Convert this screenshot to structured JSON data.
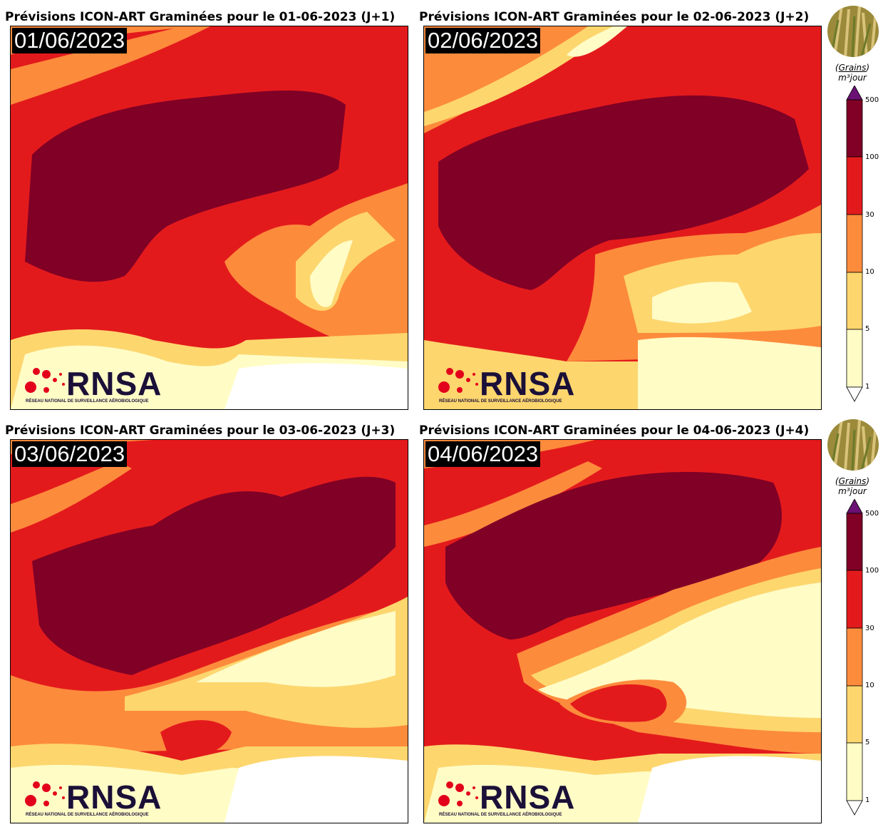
{
  "panels": [
    {
      "title": "Prévisions ICON-ART Graminées pour le 01-06-2023 (J+1)",
      "date": "01/06/2023"
    },
    {
      "title": "Prévisions ICON-ART Graminées pour le 02-06-2023 (J+2)",
      "date": "02/06/2023"
    },
    {
      "title": "Prévisions ICON-ART Graminées pour le 03-06-2023 (J+3)",
      "date": "03/06/2023"
    },
    {
      "title": "Prévisions ICON-ART Graminées pour le 04-06-2023 (J+4)",
      "date": "04/06/2023"
    }
  ],
  "logo": {
    "name": "RNSA",
    "subtitle": "RÉSEAU NATIONAL DE SURVEILLANCE AÉROBIOLOGIQUE"
  },
  "colorbar": {
    "unit_numerator": "Grains",
    "unit_denominator": "m³jour",
    "ticks": [
      "500",
      "100",
      "30",
      "10",
      "5",
      "1"
    ],
    "colors": [
      "#fffcc6",
      "#fdd66e",
      "#fd8b3c",
      "#e31a1c",
      "#800026"
    ],
    "over_color": "#6a1173",
    "under_color": "#ffffff"
  },
  "legend_icon": "grass-photo"
}
